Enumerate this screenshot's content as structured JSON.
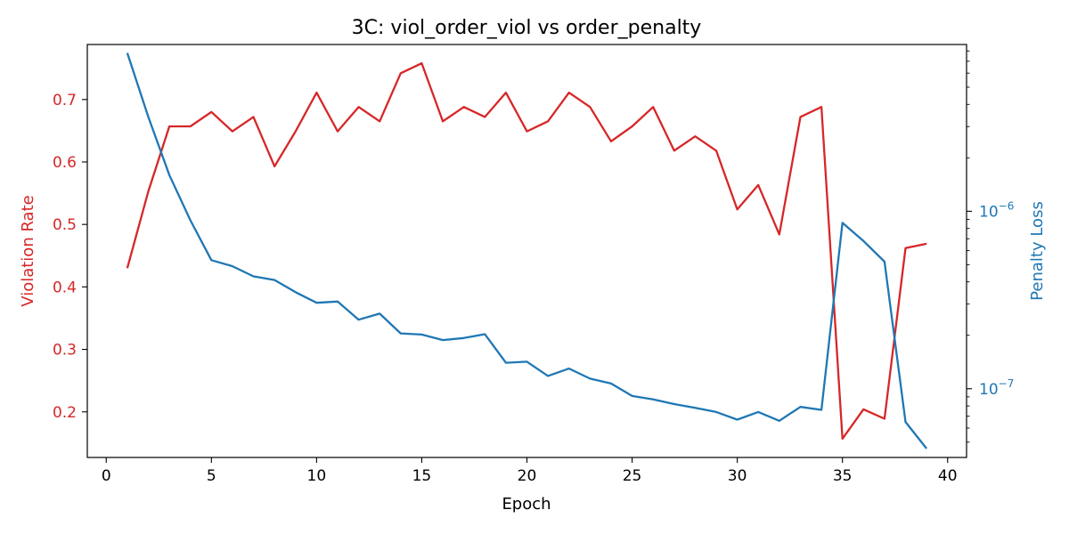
{
  "chart_data": {
    "type": "line",
    "title": "3C: viol_order_viol vs order_penalty",
    "xlabel": "Epoch",
    "xlim": [
      -0.9,
      40.9
    ],
    "xticks": [
      0,
      5,
      10,
      15,
      20,
      25,
      30,
      35,
      40
    ],
    "x": [
      1,
      2,
      3,
      4,
      5,
      6,
      7,
      8,
      9,
      10,
      11,
      12,
      13,
      14,
      15,
      16,
      17,
      18,
      19,
      20,
      21,
      22,
      23,
      24,
      25,
      26,
      27,
      28,
      29,
      30,
      31,
      32,
      33,
      34,
      35,
      36,
      37,
      38,
      39
    ],
    "colors": {
      "left": "#d62728",
      "right": "#1f77b4"
    },
    "series": [
      {
        "name": "Violation Rate",
        "axis": "left",
        "color": "#d62728",
        "values": [
          0.43,
          0.553,
          0.657,
          0.657,
          0.68,
          0.649,
          0.672,
          0.593,
          0.649,
          0.711,
          0.649,
          0.688,
          0.665,
          0.742,
          0.758,
          0.665,
          0.688,
          0.672,
          0.711,
          0.649,
          0.665,
          0.711,
          0.688,
          0.633,
          0.657,
          0.688,
          0.618,
          0.641,
          0.618,
          0.524,
          0.563,
          0.484,
          0.672,
          0.688,
          0.157,
          0.204,
          0.189,
          0.462,
          0.469
        ]
      },
      {
        "name": "Penalty Loss",
        "axis": "right",
        "color": "#1f77b4",
        "values": [
          7.8e-06,
          3.4e-06,
          1.6e-06,
          8.9e-07,
          5.3e-07,
          4.9e-07,
          4.3e-07,
          4.1e-07,
          3.5e-07,
          3.05e-07,
          3.1e-07,
          2.45e-07,
          2.65e-07,
          2.05e-07,
          2.02e-07,
          1.88e-07,
          1.93e-07,
          2.03e-07,
          1.4e-07,
          1.42e-07,
          1.18e-07,
          1.3e-07,
          1.14e-07,
          1.07e-07,
          9.1e-08,
          8.7e-08,
          8.2e-08,
          7.8e-08,
          7.4e-08,
          6.7e-08,
          7.4e-08,
          6.6e-08,
          7.9e-08,
          7.6e-08,
          8.6e-07,
          6.8e-07,
          5.2e-07,
          6.5e-08,
          4.6e-08
        ]
      }
    ],
    "left_axis": {
      "label": "Violation Rate",
      "ylim": [
        0.127,
        0.788
      ],
      "ticks": [
        0.2,
        0.3,
        0.4,
        0.5,
        0.6,
        0.7
      ]
    },
    "right_axis": {
      "label": "Penalty Loss",
      "scale": "log",
      "ylim": [
        4.1e-08,
        8.7e-06
      ],
      "major_ticks": [
        1e-07,
        1e-06
      ],
      "major_tick_labels": [
        {
          "base": "10",
          "exp": "−7"
        },
        {
          "base": "10",
          "exp": "−6"
        }
      ]
    },
    "grid": false
  }
}
